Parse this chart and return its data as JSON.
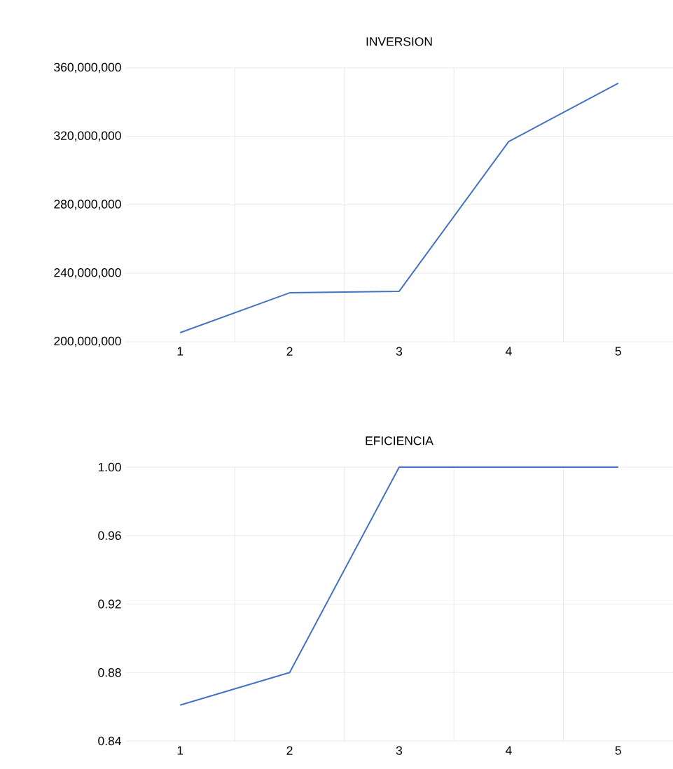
{
  "chart_data": [
    {
      "type": "line",
      "title": "INVERSION",
      "categories": [
        "1",
        "2",
        "3",
        "4",
        "5"
      ],
      "values": [
        205300000,
        228600000,
        229500000,
        317000000,
        351000000
      ],
      "color": "#4472c4",
      "ylim": [
        200000000,
        360000000
      ],
      "yticks": [
        {
          "value": 200000000,
          "label": "200,000,000"
        },
        {
          "value": 240000000,
          "label": "240,000,000"
        },
        {
          "value": 280000000,
          "label": "280,000,000"
        },
        {
          "value": 320000000,
          "label": "320,000,000"
        },
        {
          "value": 360000000,
          "label": "360,000,000"
        }
      ],
      "grid": true
    },
    {
      "type": "line",
      "title": "EFICIENCIA",
      "categories": [
        "1",
        "2",
        "3",
        "4",
        "5"
      ],
      "values": [
        0.861,
        0.88,
        1.0,
        1.0,
        1.0
      ],
      "color": "#4472c4",
      "ylim": [
        0.84,
        1.0
      ],
      "yticks": [
        {
          "value": 0.84,
          "label": "0.84"
        },
        {
          "value": 0.88,
          "label": "0.88"
        },
        {
          "value": 0.92,
          "label": "0.92"
        },
        {
          "value": 0.96,
          "label": "0.96"
        },
        {
          "value": 1.0,
          "label": "1.00"
        }
      ],
      "grid": true
    }
  ]
}
